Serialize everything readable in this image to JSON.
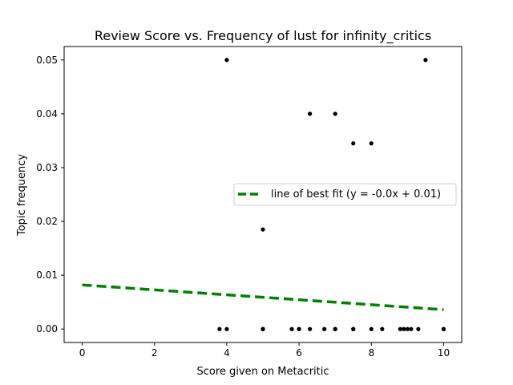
{
  "chart_data": {
    "type": "scatter",
    "title": "Review Score vs. Frequency of lust for infinity_critics",
    "xlabel": "Score given on Metacritic",
    "ylabel": "Topic frequency",
    "xlim": [
      -0.5,
      10.5
    ],
    "ylim": [
      -0.0025,
      0.0525
    ],
    "xticks": [
      0,
      2,
      4,
      6,
      8,
      10
    ],
    "xtick_labels": [
      "0",
      "2",
      "4",
      "6",
      "8",
      "10"
    ],
    "yticks": [
      0.0,
      0.01,
      0.02,
      0.03,
      0.04,
      0.05
    ],
    "ytick_labels": [
      "0.00",
      "0.01",
      "0.02",
      "0.03",
      "0.04",
      "0.05"
    ],
    "grid": false,
    "legend_position": "center-right",
    "colors": {
      "points": "#000000",
      "fit_line": "#008000"
    },
    "points": [
      {
        "x": 3.8,
        "y": 0.0
      },
      {
        "x": 4.0,
        "y": 0.0
      },
      {
        "x": 4.0,
        "y": 0.05
      },
      {
        "x": 5.0,
        "y": 0.0
      },
      {
        "x": 5.0,
        "y": 0.0
      },
      {
        "x": 5.0,
        "y": 0.0
      },
      {
        "x": 5.0,
        "y": 0.0185
      },
      {
        "x": 5.8,
        "y": 0.0
      },
      {
        "x": 6.0,
        "y": 0.0
      },
      {
        "x": 6.0,
        "y": 0.0
      },
      {
        "x": 6.3,
        "y": 0.0
      },
      {
        "x": 6.3,
        "y": 0.04
      },
      {
        "x": 6.7,
        "y": 0.0
      },
      {
        "x": 7.0,
        "y": 0.0
      },
      {
        "x": 7.0,
        "y": 0.0
      },
      {
        "x": 7.0,
        "y": 0.04
      },
      {
        "x": 7.5,
        "y": 0.0
      },
      {
        "x": 7.5,
        "y": 0.0
      },
      {
        "x": 7.5,
        "y": 0.0345
      },
      {
        "x": 8.0,
        "y": 0.0
      },
      {
        "x": 8.0,
        "y": 0.0345
      },
      {
        "x": 8.3,
        "y": 0.0
      },
      {
        "x": 8.8,
        "y": 0.0
      },
      {
        "x": 8.9,
        "y": 0.0
      },
      {
        "x": 9.0,
        "y": 0.0
      },
      {
        "x": 9.1,
        "y": 0.0
      },
      {
        "x": 9.3,
        "y": 0.0
      },
      {
        "x": 9.5,
        "y": 0.05
      },
      {
        "x": 10.0,
        "y": 0.0
      },
      {
        "x": 10.0,
        "y": 0.0
      }
    ],
    "fit_line": {
      "label": "line of best fit (y = -0.0x + 0.01)",
      "points": [
        {
          "x": 0,
          "y": 0.0082
        },
        {
          "x": 10,
          "y": 0.0036
        }
      ]
    }
  }
}
